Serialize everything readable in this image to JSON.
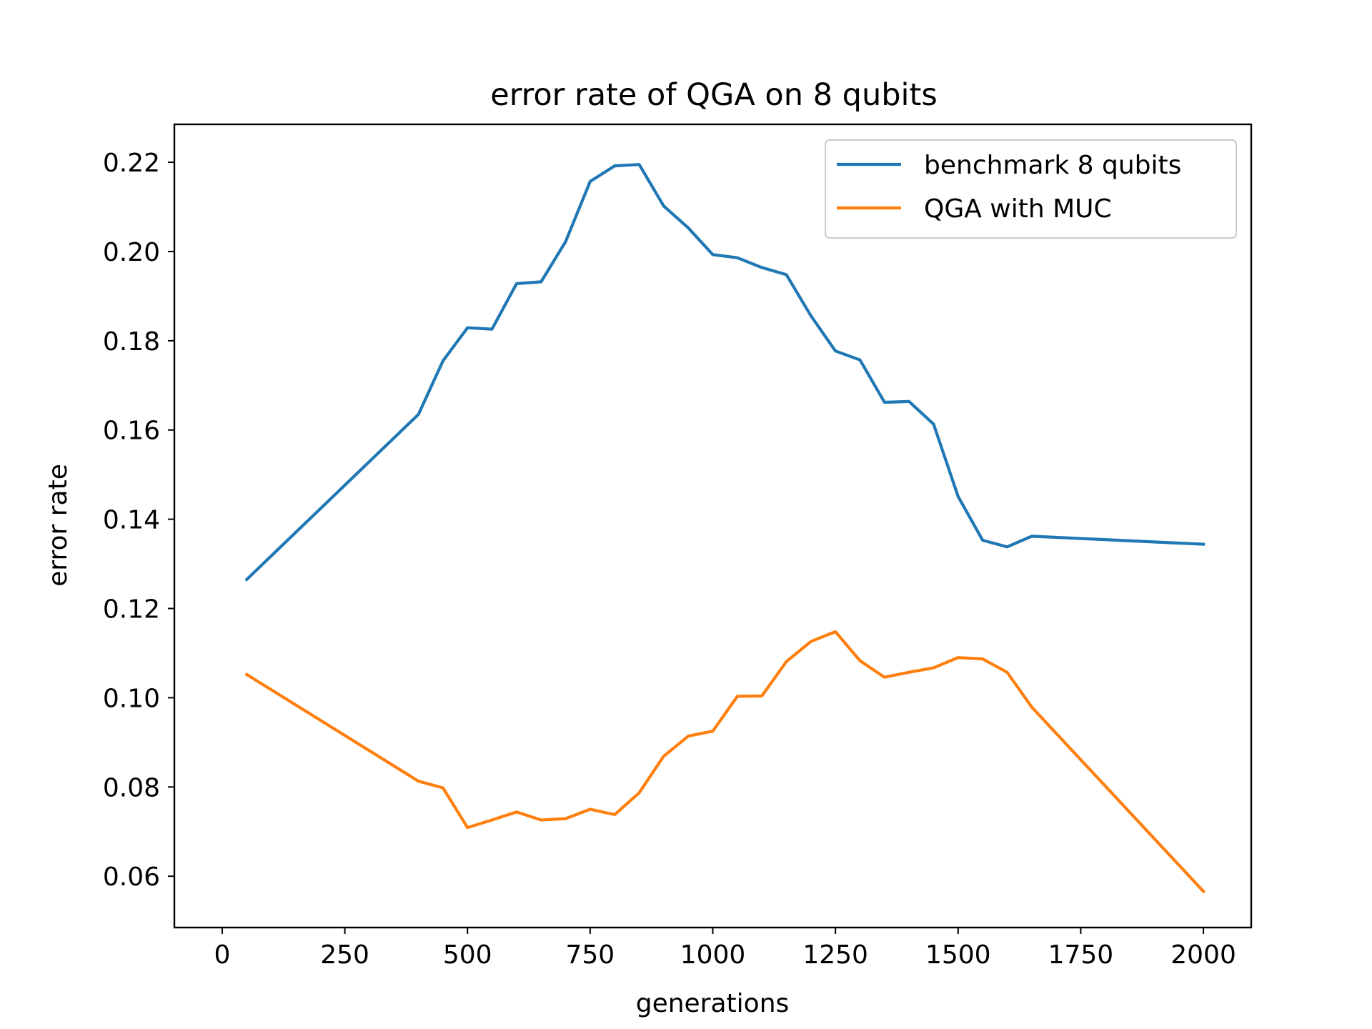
{
  "chart_data": {
    "type": "line",
    "title": "error rate of QGA on 8 qubits",
    "xlabel": "generations",
    "ylabel": "error rate",
    "xlim": [
      -97.5,
      2097.5
    ],
    "ylim": [
      0.0485,
      0.2285
    ],
    "xticks": [
      0,
      250,
      500,
      750,
      1000,
      1250,
      1500,
      1750,
      2000
    ],
    "yticks": [
      0.06,
      0.08,
      0.1,
      0.12,
      0.14,
      0.16,
      0.18,
      0.2,
      0.22
    ],
    "xtick_labels": [
      "0",
      "250",
      "500",
      "750",
      "1000",
      "1250",
      "1500",
      "1750",
      "2000"
    ],
    "ytick_labels": [
      "0.06",
      "0.08",
      "0.10",
      "0.12",
      "0.14",
      "0.16",
      "0.18",
      "0.20",
      "0.22"
    ],
    "grid": false,
    "legend_position": "top-right",
    "series": [
      {
        "name": "benchmark 8 qubits",
        "color": "#1f77b4",
        "x": [
          50,
          400,
          450,
          500,
          550,
          600,
          650,
          700,
          750,
          800,
          850,
          900,
          950,
          1000,
          1050,
          1100,
          1150,
          1200,
          1250,
          1300,
          1350,
          1400,
          1450,
          1500,
          1550,
          1600,
          1650,
          2000
        ],
        "y": [
          0.1265,
          0.1635,
          0.1755,
          0.1829,
          0.1826,
          0.1928,
          0.1932,
          0.2022,
          0.2157,
          0.2192,
          0.2195,
          0.2102,
          0.2053,
          0.1993,
          0.1986,
          0.1964,
          0.1948,
          0.1856,
          0.1777,
          0.1757,
          0.1662,
          0.1664,
          0.1613,
          0.1451,
          0.1353,
          0.1338,
          0.1362,
          0.1344
        ]
      },
      {
        "name": "QGA with MUC",
        "color": "#ff7f0e",
        "x": [
          50,
          400,
          450,
          500,
          550,
          600,
          650,
          700,
          750,
          800,
          850,
          900,
          950,
          1000,
          1050,
          1100,
          1150,
          1200,
          1250,
          1300,
          1350,
          1400,
          1450,
          1500,
          1550,
          1600,
          1650,
          2000
        ],
        "y": [
          0.1052,
          0.0813,
          0.0798,
          0.0709,
          0.0726,
          0.0744,
          0.0726,
          0.0729,
          0.075,
          0.0738,
          0.0787,
          0.0869,
          0.0914,
          0.0925,
          0.1003,
          0.1004,
          0.1081,
          0.1126,
          0.1148,
          0.1083,
          0.1046,
          0.1057,
          0.1067,
          0.109,
          0.1087,
          0.1057,
          0.0979,
          0.0566
        ]
      }
    ]
  }
}
